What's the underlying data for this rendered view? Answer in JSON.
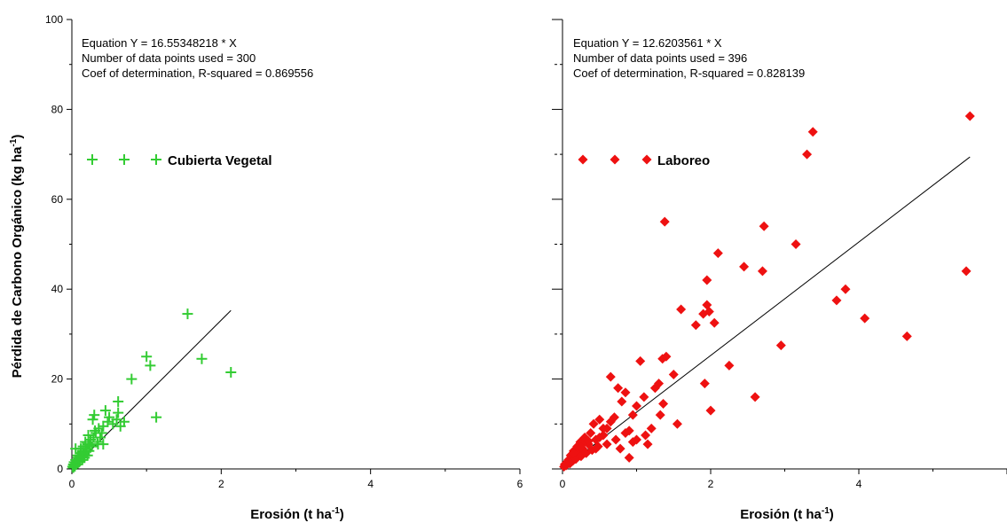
{
  "chart_data": [
    {
      "type": "scatter",
      "panel": "left",
      "xlabel": "Erosión (t ha",
      "xlabel_sup": "-1",
      "xlabel_end": ")",
      "ylabel": "Pérdida de Carbono Orgánico (kg ha",
      "ylabel_sup": "-1",
      "ylabel_end": ")",
      "xlim": [
        0,
        6
      ],
      "ylim": [
        0,
        100
      ],
      "x_ticks": [
        "0",
        "2",
        "4",
        "6"
      ],
      "y_ticks": [
        "0",
        "20",
        "40",
        "60",
        "80",
        "100"
      ],
      "equation_lines": [
        "Equation Y = 16.55348218 * X",
        "Number of data points used = 300",
        "Coef of determination, R-squared = 0.869556"
      ],
      "legend_label": "Cubierta Vegetal",
      "marker": "plus",
      "color": "#33cc33",
      "fit": {
        "slope": 16.55348218,
        "x_range": [
          0,
          2.13
        ]
      },
      "series": [
        {
          "x": [
            0.01,
            0.02,
            0.02,
            0.03,
            0.03,
            0.04,
            0.05,
            0.05,
            0.06,
            0.07,
            0.08,
            0.09,
            0.1,
            0.1,
            0.11,
            0.12,
            0.13,
            0.14,
            0.15,
            0.16,
            0.17,
            0.18,
            0.19,
            0.2,
            0.21,
            0.22,
            0.23,
            0.25,
            0.27,
            0.29,
            0.3,
            0.32,
            0.34,
            0.36,
            0.38,
            0.4,
            0.42,
            0.45,
            0.48,
            0.5,
            0.55,
            0.6,
            0.62,
            0.65,
            0.7,
            0.8,
            1.0,
            1.05,
            1.13,
            1.55,
            1.74,
            2.13,
            0.28,
            0.35,
            0.12,
            0.18,
            0.08,
            0.05,
            0.22,
            0.15,
            0.31,
            0.42,
            0.62,
            0.14,
            0.24
          ],
          "y": [
            0.5,
            0.3,
            1.0,
            0.8,
            1.5,
            0.6,
            1.2,
            2.0,
            1.0,
            1.8,
            2.5,
            1.5,
            3.0,
            2.2,
            1.8,
            3.5,
            2.8,
            2.0,
            4.0,
            3.2,
            2.5,
            5.0,
            3.8,
            4.5,
            3.0,
            5.5,
            4.0,
            6.5,
            5.0,
            7.0,
            12.0,
            8.0,
            6.0,
            9.0,
            7.0,
            8.0,
            5.5,
            13.0,
            10.5,
            11.5,
            10.0,
            11.0,
            15.0,
            9.5,
            10.5,
            20.0,
            25.0,
            23.0,
            11.5,
            34.5,
            24.5,
            21.5,
            11.0,
            5.5,
            4.5,
            6.0,
            3.0,
            4.5,
            7.5,
            5.0,
            8.5,
            9.5,
            12.5,
            2.8,
            5.2
          ]
        }
      ]
    },
    {
      "type": "scatter",
      "panel": "right",
      "xlabel": "Erosión (t ha",
      "xlabel_sup": "-1",
      "xlabel_end": ")",
      "xlim": [
        0,
        6
      ],
      "ylim": [
        0,
        100
      ],
      "x_ticks": [
        "0",
        "2",
        "4"
      ],
      "equation_lines": [
        "Equation Y = 12.6203561 * X",
        "Number of data points used = 396",
        "Coef of determination, R-squared = 0.828139"
      ],
      "legend_label": "Laboreo",
      "marker": "diamond",
      "color": "#ee1111",
      "fit": {
        "slope": 12.6203561,
        "x_range": [
          0,
          5.5
        ]
      },
      "series": [
        {
          "x": [
            0.02,
            0.03,
            0.05,
            0.06,
            0.08,
            0.1,
            0.11,
            0.12,
            0.14,
            0.15,
            0.17,
            0.18,
            0.2,
            0.22,
            0.24,
            0.25,
            0.27,
            0.3,
            0.32,
            0.35,
            0.38,
            0.4,
            0.42,
            0.45,
            0.48,
            0.5,
            0.55,
            0.6,
            0.65,
            0.7,
            0.75,
            0.8,
            0.85,
            0.9,
            0.95,
            1.0,
            1.05,
            1.1,
            1.15,
            1.2,
            1.25,
            1.3,
            1.35,
            1.4,
            1.5,
            1.6,
            1.8,
            1.9,
            1.95,
            2.0,
            2.05,
            2.1,
            2.25,
            2.45,
            2.6,
            2.7,
            2.72,
            2.95,
            3.15,
            3.3,
            3.38,
            3.7,
            3.82,
            4.08,
            4.65,
            5.45,
            5.5,
            1.38,
            1.95,
            1.92,
            1.98,
            0.65,
            0.85,
            1.0,
            1.32,
            1.36,
            1.55,
            0.55,
            0.72,
            0.9,
            0.3,
            0.45,
            0.15,
            0.25,
            0.35,
            0.5,
            0.6,
            0.78,
            0.95,
            1.12
          ],
          "y": [
            0.5,
            1.0,
            0.8,
            1.5,
            2.0,
            1.2,
            3.0,
            2.5,
            1.8,
            4.0,
            3.2,
            2.2,
            5.0,
            3.8,
            6.0,
            2.8,
            4.5,
            7.0,
            3.5,
            5.5,
            8.0,
            4.2,
            10.0,
            6.5,
            5.0,
            11.0,
            7.5,
            9.0,
            20.5,
            11.5,
            18.0,
            15.0,
            17.0,
            2.5,
            12.0,
            14.0,
            24.0,
            16.0,
            5.5,
            9.0,
            18.0,
            19.0,
            24.5,
            25.0,
            21.0,
            35.5,
            32.0,
            34.5,
            36.5,
            13.0,
            32.5,
            48.0,
            23.0,
            45.0,
            16.0,
            44.0,
            54.0,
            27.5,
            50.0,
            70.0,
            75.0,
            37.5,
            40.0,
            33.5,
            29.5,
            44.0,
            78.5,
            55.0,
            42.0,
            19.0,
            35.0,
            10.5,
            8.0,
            6.5,
            12.0,
            14.5,
            10.0,
            9.0,
            6.5,
            8.5,
            6.0,
            4.5,
            3.5,
            4.8,
            6.2,
            7.0,
            5.5,
            4.5,
            6.0,
            7.5
          ]
        }
      ]
    }
  ]
}
